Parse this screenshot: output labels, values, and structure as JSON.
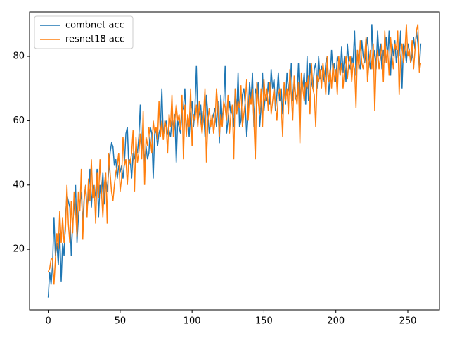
{
  "chart_data": {
    "type": "line",
    "x": [
      0,
      1,
      2,
      3,
      4,
      5,
      6,
      7,
      8,
      9,
      10,
      11,
      12,
      13,
      14,
      15,
      16,
      17,
      18,
      19,
      20,
      21,
      22,
      23,
      24,
      25,
      26,
      27,
      28,
      29,
      30,
      31,
      32,
      33,
      34,
      35,
      36,
      37,
      38,
      39,
      40,
      41,
      42,
      43,
      44,
      45,
      46,
      47,
      48,
      49,
      50,
      51,
      52,
      53,
      54,
      55,
      56,
      57,
      58,
      59,
      60,
      61,
      62,
      63,
      64,
      65,
      66,
      67,
      68,
      69,
      70,
      71,
      72,
      73,
      74,
      75,
      76,
      77,
      78,
      79,
      80,
      81,
      82,
      83,
      84,
      85,
      86,
      87,
      88,
      89,
      90,
      91,
      92,
      93,
      94,
      95,
      96,
      97,
      98,
      99,
      100,
      101,
      102,
      103,
      104,
      105,
      106,
      107,
      108,
      109,
      110,
      111,
      112,
      113,
      114,
      115,
      116,
      117,
      118,
      119,
      120,
      121,
      122,
      123,
      124,
      125,
      126,
      127,
      128,
      129,
      130,
      131,
      132,
      133,
      134,
      135,
      136,
      137,
      138,
      139,
      140,
      141,
      142,
      143,
      144,
      145,
      146,
      147,
      148,
      149,
      150,
      151,
      152,
      153,
      154,
      155,
      156,
      157,
      158,
      159,
      160,
      161,
      162,
      163,
      164,
      165,
      166,
      167,
      168,
      169,
      170,
      171,
      172,
      173,
      174,
      175,
      176,
      177,
      178,
      179,
      180,
      181,
      182,
      183,
      184,
      185,
      186,
      187,
      188,
      189,
      190,
      191,
      192,
      193,
      194,
      195,
      196,
      197,
      198,
      199,
      200,
      201,
      202,
      203,
      204,
      205,
      206,
      207,
      208,
      209,
      210,
      211,
      212,
      213,
      214,
      215,
      216,
      217,
      218,
      219,
      220,
      221,
      222,
      223,
      224,
      225,
      226,
      227,
      228,
      229,
      230,
      231,
      232,
      233,
      234,
      235,
      236,
      237,
      238,
      239,
      240,
      241,
      242,
      243,
      244,
      245,
      246,
      247,
      248,
      249,
      250,
      251,
      252,
      253,
      254,
      255,
      256,
      257,
      258,
      259
    ],
    "series": [
      {
        "name": "combnet acc",
        "color": "#1f77b4",
        "values": [
          5,
          13,
          9,
          15,
          30,
          18,
          22,
          15,
          25,
          10,
          22,
          18,
          30,
          37,
          35,
          33,
          18,
          28,
          33,
          40,
          22,
          30,
          34,
          38,
          28,
          36,
          40,
          33,
          36,
          45,
          33,
          40,
          35,
          38,
          45,
          30,
          40,
          36,
          44,
          34,
          42,
          38,
          44,
          50,
          53,
          52,
          46,
          48,
          42,
          46,
          44,
          46,
          42,
          47,
          56,
          58,
          46,
          48,
          42,
          50,
          48,
          52,
          50,
          55,
          65,
          50,
          56,
          47,
          52,
          48,
          50,
          58,
          56,
          42,
          56,
          57,
          52,
          56,
          58,
          70,
          55,
          58,
          60,
          56,
          57,
          55,
          60,
          58,
          62,
          47,
          60,
          58,
          56,
          63,
          64,
          70,
          56,
          61,
          55,
          62,
          66,
          58,
          64,
          77,
          60,
          62,
          65,
          58,
          63,
          55,
          68,
          62,
          56,
          60,
          60,
          62,
          64,
          58,
          66,
          53,
          68,
          60,
          65,
          77,
          56,
          60,
          66,
          62,
          63,
          58,
          70,
          62,
          75,
          58,
          60,
          68,
          70,
          65,
          55,
          62,
          72,
          66,
          75,
          58,
          70,
          68,
          72,
          58,
          64,
          75,
          63,
          68,
          66,
          72,
          65,
          76,
          70,
          73,
          63,
          68,
          75,
          66,
          70,
          62,
          71,
          65,
          75,
          70,
          68,
          78,
          66,
          72,
          67,
          68,
          78,
          65,
          72,
          70,
          75,
          65,
          80,
          66,
          78,
          72,
          70,
          76,
          78,
          70,
          80,
          73,
          77,
          75,
          72,
          78,
          80,
          68,
          73,
          82,
          75,
          78,
          72,
          80,
          78,
          74,
          83,
          75,
          80,
          72,
          84,
          78,
          76,
          80,
          78,
          88,
          74,
          82,
          78,
          76,
          85,
          80,
          78,
          82,
          86,
          79,
          76,
          90,
          78,
          82,
          76,
          88,
          80,
          84,
          76,
          82,
          78,
          86,
          80,
          88,
          74,
          84,
          80,
          85,
          78,
          82,
          80,
          88,
          70,
          84,
          82,
          78,
          84,
          82,
          78,
          80,
          86,
          82,
          88,
          84,
          76,
          84
        ]
      },
      {
        "name": "resnet18 acc",
        "color": "#ff7f0e",
        "values": [
          13,
          14,
          17,
          17,
          9,
          17,
          25,
          20,
          32,
          22,
          30,
          22,
          26,
          40,
          28,
          22,
          35,
          25,
          38,
          32,
          24,
          38,
          32,
          45,
          23,
          35,
          40,
          30,
          42,
          35,
          48,
          36,
          40,
          28,
          44,
          36,
          48,
          38,
          30,
          40,
          44,
          28,
          50,
          44,
          38,
          35,
          40,
          44,
          46,
          50,
          38,
          42,
          55,
          46,
          48,
          40,
          48,
          47,
          50,
          57,
          38,
          55,
          47,
          50,
          56,
          48,
          63,
          40,
          55,
          52,
          58,
          54,
          50,
          60,
          56,
          58,
          54,
          66,
          55,
          60,
          54,
          60,
          58,
          50,
          62,
          58,
          68,
          55,
          60,
          65,
          60,
          62,
          57,
          68,
          48,
          65,
          55,
          62,
          58,
          70,
          52,
          62,
          60,
          65,
          58,
          66,
          60,
          56,
          62,
          70,
          47,
          60,
          64,
          58,
          62,
          56,
          60,
          70,
          64,
          55,
          62,
          58,
          66,
          64,
          60,
          68,
          56,
          62,
          65,
          48,
          70,
          62,
          66,
          64,
          71,
          58,
          62,
          66,
          73,
          60,
          68,
          65,
          70,
          60,
          48,
          72,
          66,
          62,
          70,
          58,
          73,
          66,
          70,
          63,
          72,
          62,
          66,
          70,
          65,
          60,
          68,
          70,
          65,
          55,
          72,
          66,
          70,
          62,
          76,
          68,
          60,
          74,
          68,
          65,
          72,
          53,
          75,
          70,
          66,
          72,
          70,
          74,
          62,
          78,
          70,
          68,
          58,
          74,
          72,
          76,
          70,
          78,
          74,
          68,
          80,
          72,
          76,
          70,
          78,
          72,
          76,
          68,
          80,
          74,
          78,
          70,
          76,
          80,
          73,
          78,
          80,
          72,
          78,
          76,
          64,
          82,
          76,
          85,
          78,
          76,
          80,
          86,
          72,
          78,
          82,
          76,
          84,
          63,
          78,
          82,
          76,
          80,
          84,
          72,
          88,
          78,
          82,
          74,
          86,
          80,
          76,
          84,
          82,
          88,
          68,
          80,
          84,
          78,
          82,
          90,
          80,
          82,
          78,
          85,
          76,
          82,
          88,
          90,
          75,
          78
        ]
      }
    ],
    "xlim": [
      -13,
      272
    ],
    "ylim": [
      1.2,
      93.8
    ],
    "xticks": [
      0,
      50,
      100,
      150,
      200,
      250
    ],
    "yticks": [
      20,
      40,
      60,
      80
    ],
    "legend": "upper left"
  }
}
